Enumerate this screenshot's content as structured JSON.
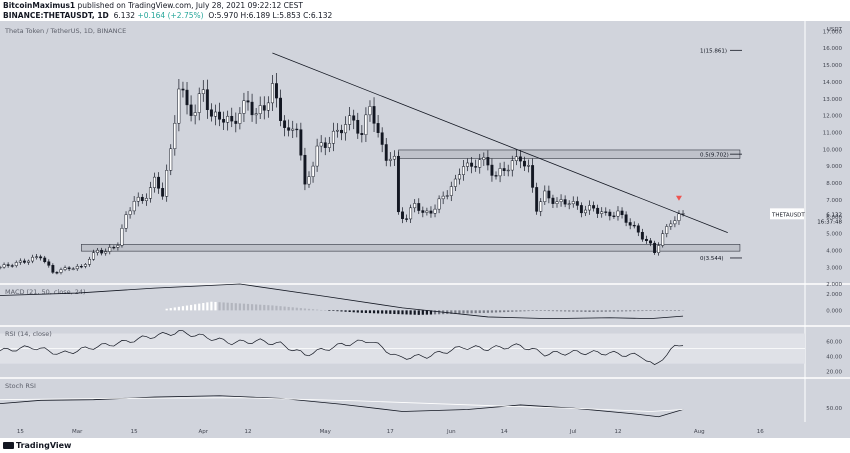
{
  "header": {
    "line1_author": "BitcoinMaximus1",
    "line1_rest": " published on TradingView.com, July 28, 2021 09:22:12 CEST",
    "line2_symbol": "BINANCE:THETAUSDT, 1D",
    "line2_price": "6.132",
    "line2_change": "+0.164 (+2.75%)",
    "line2_ohlc": "O:5.970  H:6.189  L:5.853  C:6.132"
  },
  "chart_title": "Theta Token / TetherUS, 1D, BINANCE",
  "currency": "USDT",
  "footer_logo": "TradingView",
  "colors": {
    "pane_bg": "#d1d4dc",
    "pane_bg_light": "#dfe1e7",
    "candle": "#131722",
    "band_fill": "#b2b5be",
    "marker": "#ef5350",
    "axis_text": "#434651"
  },
  "chart_data": [
    {
      "type": "candlestick",
      "title": "Theta Token / TetherUS, 1D, BINANCE",
      "symbol": "THETAUSDT",
      "last_price_label": "6.132",
      "countdown_label": "16:37:48",
      "y_ticks": [
        "17.000",
        "16.000",
        "15.000",
        "14.000",
        "13.000",
        "12.000",
        "11.000",
        "10.000",
        "9.000",
        "8.000",
        "7.000",
        "6.000",
        "5.000",
        "4.000",
        "3.000",
        "2.000"
      ],
      "ylim": [
        2,
        17.6
      ],
      "x_ticks": [
        {
          "label": "15",
          "date": "2021-02-15"
        },
        {
          "label": "Mar",
          "date": "2021-03-01"
        },
        {
          "label": "15",
          "date": "2021-03-15"
        },
        {
          "label": "Apr",
          "date": "2021-04-01"
        },
        {
          "label": "12",
          "date": "2021-04-12"
        },
        {
          "label": "May",
          "date": "2021-05-01"
        },
        {
          "label": "17",
          "date": "2021-05-17"
        },
        {
          "label": "Jun",
          "date": "2021-06-01"
        },
        {
          "label": "14",
          "date": "2021-06-14"
        },
        {
          "label": "Jul",
          "date": "2021-07-01"
        },
        {
          "label": "12",
          "date": "2021-07-12"
        },
        {
          "label": "Aug",
          "date": "2021-08-01"
        },
        {
          "label": "16",
          "date": "2021-08-16"
        }
      ],
      "xlim": [
        "2021-02-10",
        "2021-08-27"
      ],
      "close_path": [
        [
          "2021-02-10",
          3.0
        ],
        [
          "2021-02-16",
          3.35
        ],
        [
          "2021-02-20",
          3.65
        ],
        [
          "2021-02-23",
          2.7
        ],
        [
          "2021-02-27",
          2.95
        ],
        [
          "2021-03-02",
          3.0
        ],
        [
          "2021-03-06",
          4.0
        ],
        [
          "2021-03-08",
          3.9
        ],
        [
          "2021-03-11",
          4.4
        ],
        [
          "2021-03-13",
          6.0
        ],
        [
          "2021-03-15",
          7.0
        ],
        [
          "2021-03-17",
          6.9
        ],
        [
          "2021-03-20",
          8.1
        ],
        [
          "2021-03-22",
          7.4
        ],
        [
          "2021-03-24",
          9.8
        ],
        [
          "2021-03-26",
          13.8
        ],
        [
          "2021-03-28",
          12.5
        ],
        [
          "2021-03-30",
          12.2
        ],
        [
          "2021-04-01",
          13.6
        ],
        [
          "2021-04-03",
          11.8
        ],
        [
          "2021-04-05",
          12.0
        ],
        [
          "2021-04-08",
          11.5
        ],
        [
          "2021-04-10",
          12.2
        ],
        [
          "2021-04-12",
          12.8
        ],
        [
          "2021-04-14",
          12.0
        ],
        [
          "2021-04-16",
          12.5
        ],
        [
          "2021-04-18",
          13.6
        ],
        [
          "2021-04-20",
          12.0
        ],
        [
          "2021-04-22",
          10.8
        ],
        [
          "2021-04-24",
          11.5
        ],
        [
          "2021-04-26",
          7.7
        ],
        [
          "2021-04-29",
          10.0
        ],
        [
          "2021-05-02",
          10.5
        ],
        [
          "2021-05-05",
          11.3
        ],
        [
          "2021-05-08",
          11.8
        ],
        [
          "2021-05-10",
          10.7
        ],
        [
          "2021-05-12",
          12.8
        ],
        [
          "2021-05-14",
          10.7
        ],
        [
          "2021-05-16",
          9.6
        ],
        [
          "2021-05-18",
          9.3
        ],
        [
          "2021-05-19",
          6.3
        ],
        [
          "2021-05-21",
          5.8
        ],
        [
          "2021-05-23",
          6.9
        ],
        [
          "2021-05-25",
          6.1
        ],
        [
          "2021-05-28",
          6.5
        ],
        [
          "2021-05-30",
          7.2
        ],
        [
          "2021-06-02",
          8.0
        ],
        [
          "2021-06-04",
          9.2
        ],
        [
          "2021-06-06",
          8.8
        ],
        [
          "2021-06-08",
          9.5
        ],
        [
          "2021-06-10",
          9.0
        ],
        [
          "2021-06-12",
          8.4
        ],
        [
          "2021-06-15",
          9.0
        ],
        [
          "2021-06-18",
          9.5
        ],
        [
          "2021-06-20",
          8.8
        ],
        [
          "2021-06-22",
          6.5
        ],
        [
          "2021-06-24",
          7.3
        ],
        [
          "2021-06-27",
          6.8
        ],
        [
          "2021-06-30",
          6.9
        ],
        [
          "2021-07-03",
          6.4
        ],
        [
          "2021-07-06",
          6.5
        ],
        [
          "2021-07-09",
          6.1
        ],
        [
          "2021-07-12",
          6.2
        ],
        [
          "2021-07-14",
          5.8
        ],
        [
          "2021-07-16",
          5.3
        ],
        [
          "2021-07-18",
          4.8
        ],
        [
          "2021-07-20",
          4.3
        ],
        [
          "2021-07-21",
          3.9
        ],
        [
          "2021-07-23",
          4.9
        ],
        [
          "2021-07-25",
          5.7
        ],
        [
          "2021-07-27",
          6.0
        ],
        [
          "2021-07-28",
          6.13
        ]
      ],
      "zones": [
        {
          "y0": 9.45,
          "y1": 9.95,
          "from": "2021-05-19",
          "to": "2021-08-11"
        },
        {
          "y0": 3.95,
          "y1": 4.35,
          "from": "2021-03-02",
          "to": "2021-08-11"
        }
      ],
      "trendline": {
        "from": [
          "2021-04-18",
          15.7
        ],
        "to": [
          "2021-08-08",
          5.05
        ]
      },
      "fib_levels": [
        {
          "label": "1(15.861)",
          "value": 15.861
        },
        {
          "label": "0.5(9.702)",
          "value": 9.702
        },
        {
          "label": "0(3.544)",
          "value": 3.544
        }
      ],
      "marker": {
        "date": "2021-07-27",
        "value": 7.0,
        "shape": "down-triangle"
      }
    },
    {
      "type": "histogram",
      "title": "MACD (21, 50, close, 24)",
      "y_ticks": [
        "2.000",
        "0.000"
      ],
      "ylim": [
        -1.9,
        3.2
      ],
      "signal_path": [
        [
          "2021-02-10",
          1.8
        ],
        [
          "2021-03-01",
          2.1
        ],
        [
          "2021-03-20",
          2.7
        ],
        [
          "2021-04-10",
          3.2
        ],
        [
          "2021-05-01",
          1.7
        ],
        [
          "2021-05-20",
          0.3
        ],
        [
          "2021-06-10",
          -0.8
        ],
        [
          "2021-06-25",
          -1.0
        ],
        [
          "2021-07-10",
          -0.9
        ],
        [
          "2021-07-20",
          -1.0
        ],
        [
          "2021-07-28",
          -0.7
        ]
      ],
      "histogram_path": [
        [
          "2021-03-23",
          0.2
        ],
        [
          "2021-04-03",
          1.05
        ],
        [
          "2021-04-18",
          0.6
        ],
        [
          "2021-05-01",
          0.0
        ],
        [
          "2021-05-10",
          -0.3
        ],
        [
          "2021-05-24",
          -0.55
        ],
        [
          "2021-06-10",
          -0.3
        ],
        [
          "2021-06-22",
          -0.05
        ],
        [
          "2021-07-05",
          -0.2
        ],
        [
          "2021-07-22",
          -0.05
        ],
        [
          "2021-07-28",
          0.0
        ]
      ]
    },
    {
      "type": "line",
      "title": "RSI (14, close)",
      "y_ticks": [
        "60.00",
        "40.00",
        "20.00"
      ],
      "ylim": [
        11,
        80
      ],
      "band": [
        30,
        70
      ],
      "midline": 50,
      "values": [
        [
          "2021-02-10",
          47
        ],
        [
          "2021-02-18",
          52
        ],
        [
          "2021-02-25",
          43
        ],
        [
          "2021-03-05",
          52
        ],
        [
          "2021-03-12",
          58
        ],
        [
          "2021-03-18",
          65
        ],
        [
          "2021-03-26",
          72
        ],
        [
          "2021-04-01",
          66
        ],
        [
          "2021-04-08",
          58
        ],
        [
          "2021-04-15",
          60
        ],
        [
          "2021-04-20",
          56
        ],
        [
          "2021-04-26",
          42
        ],
        [
          "2021-05-05",
          55
        ],
        [
          "2021-05-12",
          61
        ],
        [
          "2021-05-19",
          38
        ],
        [
          "2021-05-26",
          40
        ],
        [
          "2021-06-04",
          52
        ],
        [
          "2021-06-10",
          50
        ],
        [
          "2021-06-18",
          54
        ],
        [
          "2021-06-24",
          43
        ],
        [
          "2021-07-02",
          45
        ],
        [
          "2021-07-10",
          44
        ],
        [
          "2021-07-18",
          40
        ],
        [
          "2021-07-21",
          26
        ],
        [
          "2021-07-23",
          38
        ],
        [
          "2021-07-26",
          52
        ],
        [
          "2021-07-28",
          57
        ]
      ]
    },
    {
      "type": "line",
      "title": "Stoch RSI",
      "y_ticks": [
        "50.00"
      ],
      "ylim": [
        28,
        95
      ],
      "series": [
        {
          "values": [
            [
              "2021-02-10",
              56
            ],
            [
              "2021-02-20",
              61
            ],
            [
              "2021-03-05",
              62
            ],
            [
              "2021-03-20",
              66
            ],
            [
              "2021-04-05",
              68
            ],
            [
              "2021-04-20",
              64
            ],
            [
              "2021-05-05",
              55
            ],
            [
              "2021-05-20",
              44
            ],
            [
              "2021-06-05",
              47
            ],
            [
              "2021-06-18",
              54
            ],
            [
              "2021-07-01",
              49
            ],
            [
              "2021-07-15",
              41
            ],
            [
              "2021-07-22",
              36
            ],
            [
              "2021-07-28",
              47
            ]
          ]
        },
        {
          "values": [
            [
              "2021-02-10",
              62
            ],
            [
              "2021-03-10",
              64
            ],
            [
              "2021-04-10",
              65
            ],
            [
              "2021-05-10",
              60
            ],
            [
              "2021-06-10",
              53
            ],
            [
              "2021-07-05",
              48
            ],
            [
              "2021-07-20",
              44
            ],
            [
              "2021-07-28",
              47
            ]
          ]
        }
      ]
    }
  ]
}
